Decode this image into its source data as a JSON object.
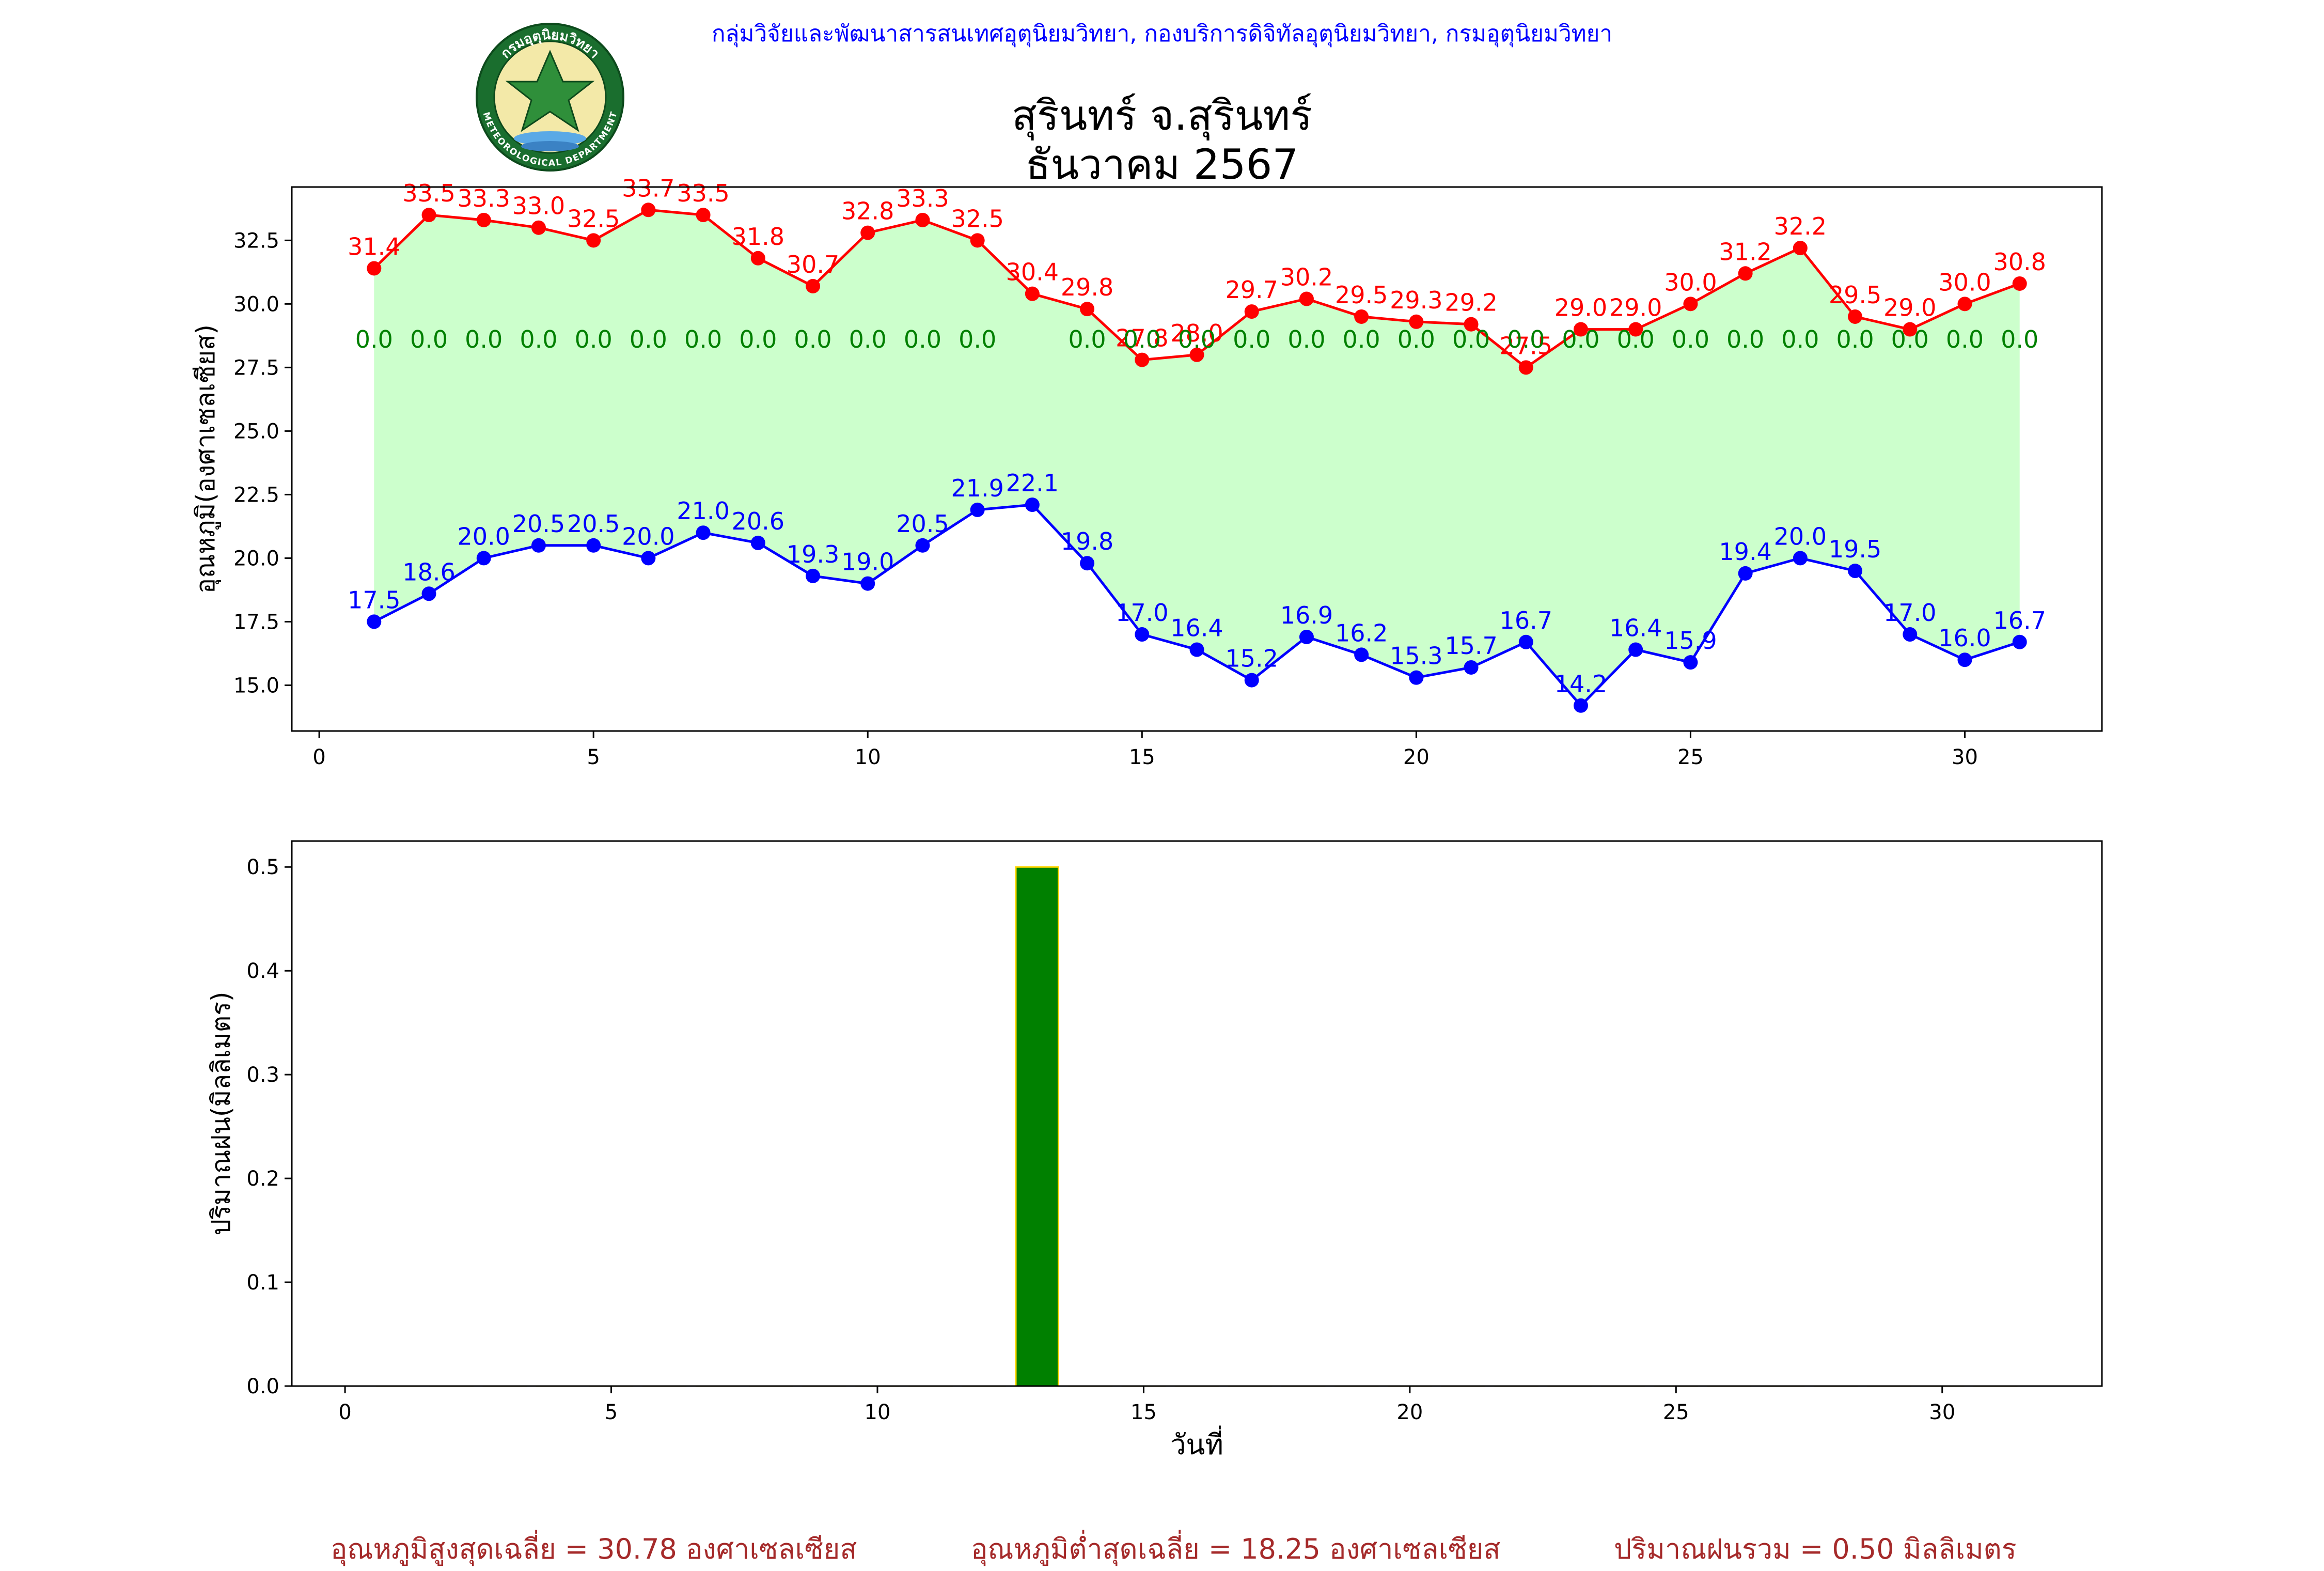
{
  "header": {
    "credit": "กลุ่มวิจัยและพัฒนาสารสนเทศอุตุนิยมวิทยา, กองบริการดิจิทัลอุตุนิยมวิทยา, กรมอุตุนิยมวิทยา",
    "title": "สุรินทร์ จ.สุรินทร์",
    "subtitle": "ธันวาคม 2567",
    "logo_text_top": "กรมอุตุนิยมวิทยา",
    "logo_text_bottom": "METEOROLOGICAL DEPARTMENT"
  },
  "colors": {
    "max_temp": "#ff0000",
    "min_temp": "#0000ff",
    "fill": "#ccffcc",
    "rain_label": "#008000",
    "rain_bar": "#008000",
    "rain_bar_edge": "#ffd700",
    "summary": "#a52a2a"
  },
  "chart_data": [
    {
      "type": "line",
      "ylabel": "อุณหภูมิ(องศาเซลเซียส)",
      "xlabel": "",
      "xlim": [
        -0.5,
        32.5
      ],
      "ylim": [
        13.2,
        34.6
      ],
      "xticks": [
        0,
        5,
        10,
        15,
        20,
        25,
        30
      ],
      "yticks": [
        "15.0",
        "17.5",
        "20.0",
        "22.5",
        "25.0",
        "27.5",
        "30.0",
        "32.5"
      ],
      "grid": false,
      "x": [
        1,
        2,
        3,
        4,
        5,
        6,
        7,
        8,
        9,
        10,
        11,
        12,
        13,
        14,
        15,
        16,
        17,
        18,
        19,
        20,
        21,
        22,
        23,
        24,
        25,
        26,
        27,
        28,
        29,
        30,
        31
      ],
      "series": [
        {
          "role": "max",
          "values": [
            31.4,
            33.5,
            33.3,
            33.0,
            32.5,
            33.7,
            33.5,
            31.8,
            30.7,
            32.8,
            33.3,
            32.5,
            30.4,
            29.8,
            27.8,
            28.0,
            29.7,
            30.2,
            29.5,
            29.3,
            29.2,
            27.5,
            29.0,
            29.0,
            30.0,
            31.2,
            32.2,
            29.5,
            29.0,
            30.0,
            30.8
          ],
          "labels": [
            "31.4",
            "33.5",
            "33.3",
            "33.0",
            "32.5",
            "33.7",
            "33.5",
            "31.8",
            "30.7",
            "32.8",
            "33.3",
            "32.5",
            "30.4",
            "29.8",
            "27.8",
            "28.0",
            "29.7",
            "30.2",
            "29.5",
            "29.3",
            "29.2",
            "27.5",
            "29.0",
            "29.0",
            "30.0",
            "31.2",
            "32.2",
            "29.5",
            "29.0",
            "30.0",
            "30.8"
          ]
        },
        {
          "role": "min",
          "values": [
            17.5,
            18.6,
            20.0,
            20.5,
            20.5,
            20.0,
            21.0,
            20.6,
            19.3,
            19.0,
            20.5,
            21.9,
            22.1,
            19.8,
            17.0,
            16.4,
            15.2,
            16.9,
            16.2,
            15.3,
            15.7,
            16.7,
            14.2,
            16.4,
            15.9,
            19.4,
            20.0,
            19.5,
            17.0,
            16.0,
            16.7
          ],
          "labels": [
            "17.5",
            "18.6",
            "20.0",
            "20.5",
            "20.5",
            "20.0",
            "21.0",
            "20.6",
            "19.3",
            "19.0",
            "20.5",
            "21.9",
            "22.1",
            "19.8",
            "17.0",
            "16.4",
            "15.2",
            "16.9",
            "16.2",
            "15.3",
            "15.7",
            "16.7",
            "14.2",
            "16.4",
            "15.9",
            "19.4",
            "20.0",
            "19.5",
            "17.0",
            "16.0",
            "16.7"
          ]
        }
      ],
      "rain_labels": {
        "y": 28.6,
        "days": [
          1,
          2,
          3,
          4,
          5,
          6,
          7,
          8,
          9,
          10,
          11,
          12,
          14,
          15,
          16,
          17,
          18,
          19,
          20,
          21,
          22,
          23,
          24,
          25,
          26,
          27,
          28,
          29,
          30,
          31
        ],
        "labels": [
          "0.0",
          "0.0",
          "0.0",
          "0.0",
          "0.0",
          "0.0",
          "0.0",
          "0.0",
          "0.0",
          "0.0",
          "0.0",
          "0.0",
          "0.0",
          "0.0",
          "0.0",
          "0.0",
          "0.0",
          "0.0",
          "0.0",
          "0.0",
          "0.0",
          "0.0",
          "0.0",
          "0.0",
          "0.0",
          "0.0",
          "0.0",
          "0.0",
          "0.0",
          "0.0"
        ]
      }
    },
    {
      "type": "bar",
      "ylabel": "ปริมาณฝน(มิลลิเมตร)",
      "xlabel": "วันที่",
      "xlim": [
        -1,
        33
      ],
      "ylim": [
        0,
        0.525
      ],
      "xticks": [
        0,
        5,
        10,
        15,
        20,
        25,
        30
      ],
      "yticks": [
        "0.0",
        "0.1",
        "0.2",
        "0.3",
        "0.4",
        "0.5"
      ],
      "grid": false,
      "categories": [
        1,
        2,
        3,
        4,
        5,
        6,
        7,
        8,
        9,
        10,
        11,
        12,
        13,
        14,
        15,
        16,
        17,
        18,
        19,
        20,
        21,
        22,
        23,
        24,
        25,
        26,
        27,
        28,
        29,
        30,
        31
      ],
      "values": [
        0,
        0,
        0,
        0,
        0,
        0,
        0,
        0,
        0,
        0,
        0,
        0,
        0.5,
        0,
        0,
        0,
        0,
        0,
        0,
        0,
        0,
        0,
        0,
        0,
        0,
        0,
        0,
        0,
        0,
        0,
        0
      ]
    }
  ],
  "summary": {
    "max_avg": "อุณหภูมิสูงสุดเฉลี่ย = 30.78 องศาเซลเซียส",
    "min_avg": "อุณหภูมิต่ำสุดเฉลี่ย = 18.25 องศาเซลเซียส",
    "rain_total": "ปริมาณฝนรวม = 0.50 มิลลิเมตร"
  }
}
